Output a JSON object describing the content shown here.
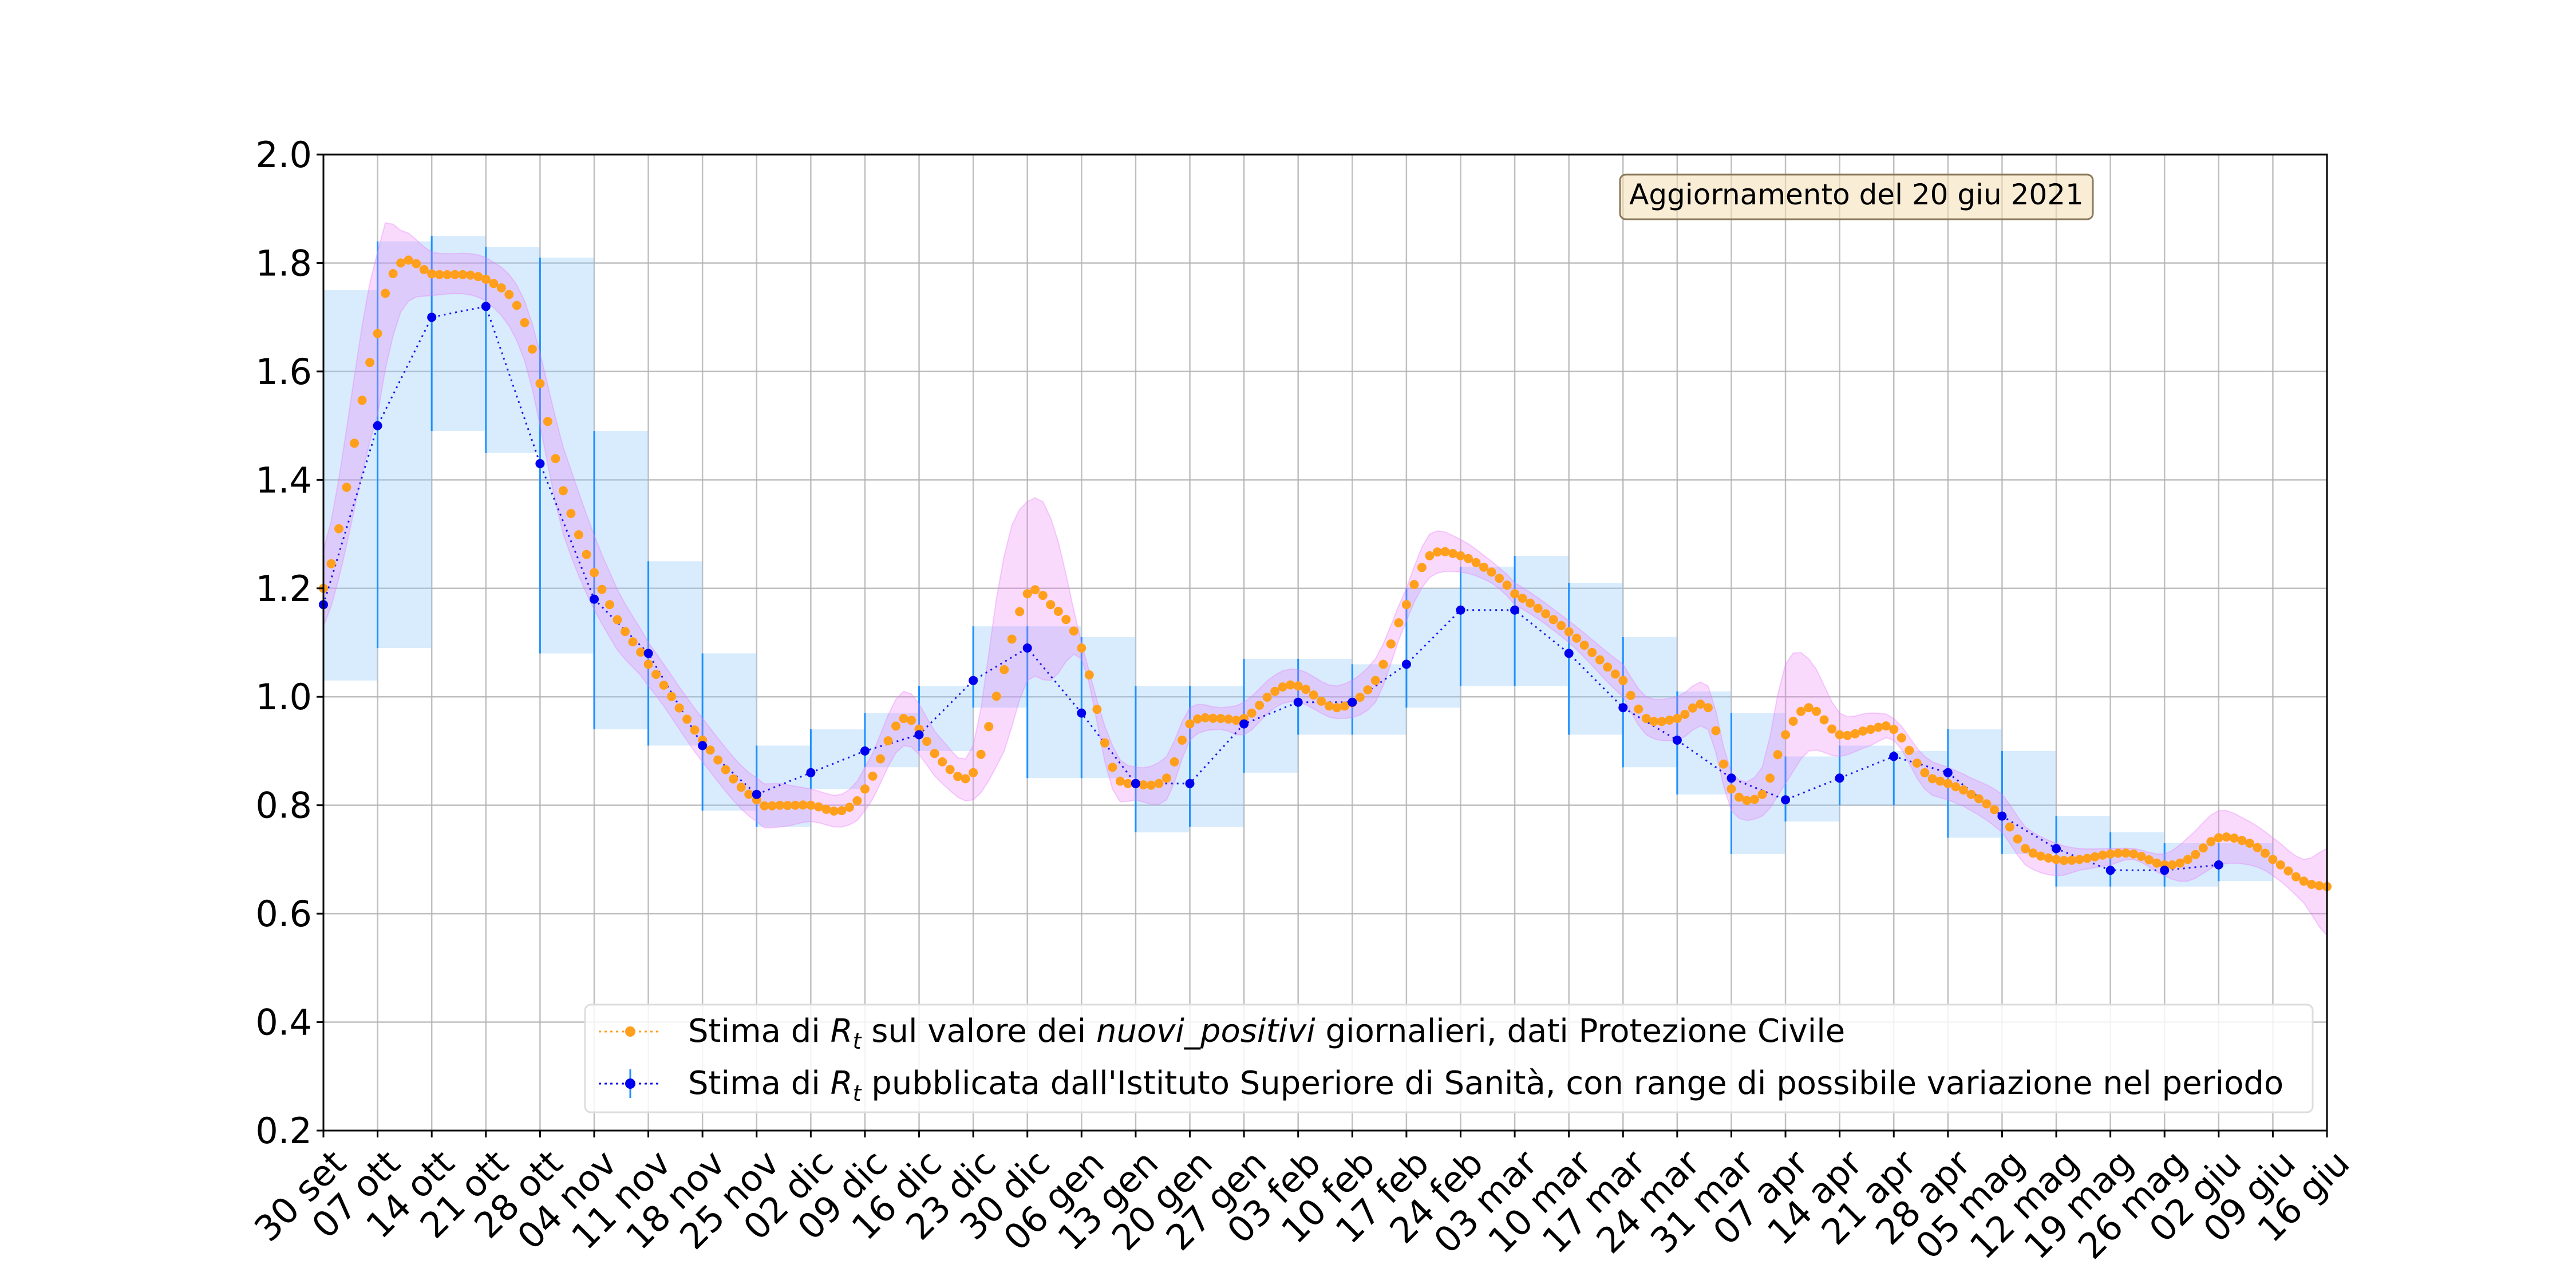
{
  "chart_data": {
    "type": "line",
    "title": "",
    "xlabel": "",
    "ylabel": "",
    "ylim": [
      0.2,
      2.0
    ],
    "grid": true,
    "legend_placement": "lower-right",
    "annotation": "Aggiornamento del 20 giu 2021",
    "x_tick_labels": [
      "30 set",
      "07 ott",
      "14 ott",
      "21 ott",
      "28 ott",
      "04 nov",
      "11 nov",
      "18 nov",
      "25 nov",
      "02 dic",
      "09 dic",
      "16 dic",
      "23 dic",
      "30 dic",
      "06 gen",
      "13 gen",
      "20 gen",
      "27 gen",
      "03 feb",
      "10 feb",
      "17 feb",
      "24 feb",
      "03 mar",
      "10 mar",
      "17 mar",
      "24 mar",
      "31 mar",
      "07 apr",
      "14 apr",
      "21 apr",
      "28 apr",
      "05 mag",
      "12 mag",
      "19 mag",
      "26 mag",
      "02 giu",
      "09 giu",
      "16 giu"
    ],
    "y_ticks": [
      "0.2",
      "0.4",
      "0.6",
      "0.8",
      "1.0",
      "1.2",
      "1.4",
      "1.6",
      "1.8",
      "2.0"
    ],
    "series": [
      {
        "name": "Stima di R_t sul valore dei nuovi_positivi giornalieri, dati Protezione Civile",
        "legend_parts": {
          "pre": "Stima di ",
          "r": "R",
          "t": "t",
          "mid": " sul valore dei ",
          "italic": "nuovi_positivi",
          "post": " giornalieri, dati Protezione Civile"
        },
        "color": "#ff9f1c",
        "band_color": "#e879f9",
        "x": [
          "2020-09-30",
          "2020-10-07",
          "2020-10-10",
          "2020-10-14",
          "2020-10-21",
          "2020-10-26",
          "2020-10-31",
          "2020-11-06",
          "2020-11-11",
          "2020-11-18",
          "2020-11-25",
          "2020-11-28",
          "2020-12-02",
          "2020-12-06",
          "2020-12-09",
          "2020-12-14",
          "2020-12-19",
          "2020-12-23",
          "2020-12-27",
          "2020-12-30",
          "2021-01-02",
          "2021-01-06",
          "2021-01-10",
          "2021-01-13",
          "2021-01-17",
          "2021-01-20",
          "2021-01-24",
          "2021-01-27",
          "2021-01-31",
          "2021-02-03",
          "2021-02-08",
          "2021-02-13",
          "2021-02-17",
          "2021-02-20",
          "2021-02-24",
          "2021-02-28",
          "2021-03-03",
          "2021-03-10",
          "2021-03-17",
          "2021-03-20",
          "2021-03-24",
          "2021-03-28",
          "2021-03-31",
          "2021-04-04",
          "2021-04-07",
          "2021-04-10",
          "2021-04-14",
          "2021-04-18",
          "2021-04-21",
          "2021-04-25",
          "2021-04-28",
          "2021-05-01",
          "2021-05-05",
          "2021-05-08",
          "2021-05-12",
          "2021-05-15",
          "2021-05-19",
          "2021-05-22",
          "2021-05-26",
          "2021-05-29",
          "2021-06-02",
          "2021-06-06",
          "2021-06-09",
          "2021-06-13",
          "2021-06-16"
        ],
        "values": [
          1.2,
          1.67,
          1.8,
          1.78,
          1.77,
          1.69,
          1.38,
          1.17,
          1.06,
          0.92,
          0.81,
          0.8,
          0.8,
          0.79,
          0.83,
          0.96,
          0.88,
          0.86,
          1.05,
          1.19,
          1.17,
          1.09,
          0.87,
          0.84,
          0.85,
          0.95,
          0.96,
          0.96,
          1.01,
          1.02,
          0.98,
          1.03,
          1.17,
          1.26,
          1.26,
          1.23,
          1.19,
          1.12,
          1.03,
          0.96,
          0.96,
          0.98,
          0.83,
          0.82,
          0.93,
          0.98,
          0.93,
          0.94,
          0.94,
          0.86,
          0.84,
          0.82,
          0.78,
          0.72,
          0.7,
          0.7,
          0.71,
          0.71,
          0.69,
          0.7,
          0.74,
          0.73,
          0.7,
          0.66,
          0.65
        ],
        "band_upper": [
          1.27,
          1.82,
          1.86,
          1.82,
          1.81,
          1.73,
          1.46,
          1.23,
          1.1,
          0.96,
          0.85,
          0.84,
          0.83,
          0.82,
          0.87,
          1.01,
          0.92,
          0.91,
          1.26,
          1.36,
          1.33,
          1.1,
          0.91,
          0.87,
          0.89,
          0.98,
          0.98,
          0.99,
          1.04,
          1.05,
          1.02,
          1.07,
          1.2,
          1.3,
          1.29,
          1.25,
          1.21,
          1.14,
          1.06,
          1.0,
          1.0,
          1.02,
          0.86,
          0.87,
          1.06,
          1.07,
          0.97,
          0.97,
          0.96,
          0.89,
          0.87,
          0.85,
          0.82,
          0.76,
          0.73,
          0.72,
          0.72,
          0.72,
          0.71,
          0.74,
          0.79,
          0.77,
          0.74,
          0.7,
          0.72
        ],
        "band_lower": [
          1.13,
          1.52,
          1.71,
          1.74,
          1.73,
          1.62,
          1.3,
          1.11,
          1.02,
          0.88,
          0.77,
          0.76,
          0.77,
          0.76,
          0.79,
          0.91,
          0.84,
          0.81,
          0.9,
          1.03,
          1.03,
          1.07,
          0.83,
          0.81,
          0.81,
          0.92,
          0.94,
          0.93,
          0.98,
          0.99,
          0.96,
          0.99,
          1.14,
          1.22,
          1.23,
          1.21,
          1.17,
          1.1,
          1.0,
          0.93,
          0.92,
          0.94,
          0.79,
          0.78,
          0.84,
          0.9,
          0.89,
          0.91,
          0.92,
          0.83,
          0.81,
          0.79,
          0.75,
          0.69,
          0.67,
          0.68,
          0.69,
          0.7,
          0.67,
          0.66,
          0.69,
          0.69,
          0.67,
          0.62,
          0.56
        ]
      },
      {
        "name": "Stima di R_t pubblicata dall'Istituto Superiore di Sanità, con range di possibile variazione nel periodo",
        "legend_parts": {
          "pre": "Stima di ",
          "r": "R",
          "t": "t",
          "mid": " pubblicata dall'Istituto Superiore di Sanità, con range di possibile variazione nel periodo",
          "italic": "",
          "post": ""
        },
        "color": "#0000ee",
        "range_color": "#1e90ff",
        "x": [
          "2020-09-30",
          "2020-10-07",
          "2020-10-14",
          "2020-10-21",
          "2020-10-28",
          "2020-11-04",
          "2020-11-11",
          "2020-11-18",
          "2020-11-25",
          "2020-12-02",
          "2020-12-09",
          "2020-12-16",
          "2020-12-23",
          "2020-12-30",
          "2021-01-06",
          "2021-01-13",
          "2021-01-20",
          "2021-01-27",
          "2021-02-03",
          "2021-02-10",
          "2021-02-17",
          "2021-02-24",
          "2021-03-03",
          "2021-03-10",
          "2021-03-17",
          "2021-03-24",
          "2021-03-31",
          "2021-04-07",
          "2021-04-14",
          "2021-04-21",
          "2021-04-28",
          "2021-05-05",
          "2021-05-12",
          "2021-05-19",
          "2021-05-26",
          "2021-06-02"
        ],
        "values": [
          1.17,
          1.5,
          1.7,
          1.72,
          1.43,
          1.18,
          1.08,
          0.91,
          0.82,
          0.86,
          0.9,
          0.93,
          1.03,
          1.09,
          0.97,
          0.84,
          0.84,
          0.95,
          0.99,
          0.99,
          1.06,
          1.16,
          1.16,
          1.08,
          0.98,
          0.92,
          0.85,
          0.81,
          0.85,
          0.89,
          0.86,
          0.78,
          0.72,
          0.68,
          0.68,
          0.69
        ],
        "range_low": [
          1.03,
          1.09,
          1.49,
          1.45,
          1.08,
          0.94,
          0.91,
          0.79,
          0.76,
          0.83,
          0.87,
          0.9,
          0.98,
          0.85,
          0.85,
          0.75,
          0.76,
          0.86,
          0.93,
          0.93,
          0.98,
          1.02,
          1.02,
          0.93,
          0.87,
          0.82,
          0.71,
          0.77,
          0.8,
          0.8,
          0.74,
          0.71,
          0.65,
          0.65,
          0.65,
          0.66
        ],
        "range_high": [
          1.75,
          1.84,
          1.85,
          1.83,
          1.81,
          1.49,
          1.25,
          1.08,
          0.91,
          0.94,
          0.97,
          1.02,
          1.13,
          1.13,
          1.11,
          1.02,
          1.02,
          1.07,
          1.07,
          1.06,
          1.2,
          1.24,
          1.26,
          1.21,
          1.11,
          1.01,
          0.97,
          0.89,
          0.91,
          0.9,
          0.94,
          0.9,
          0.78,
          0.75,
          0.73,
          0.73
        ]
      }
    ]
  }
}
